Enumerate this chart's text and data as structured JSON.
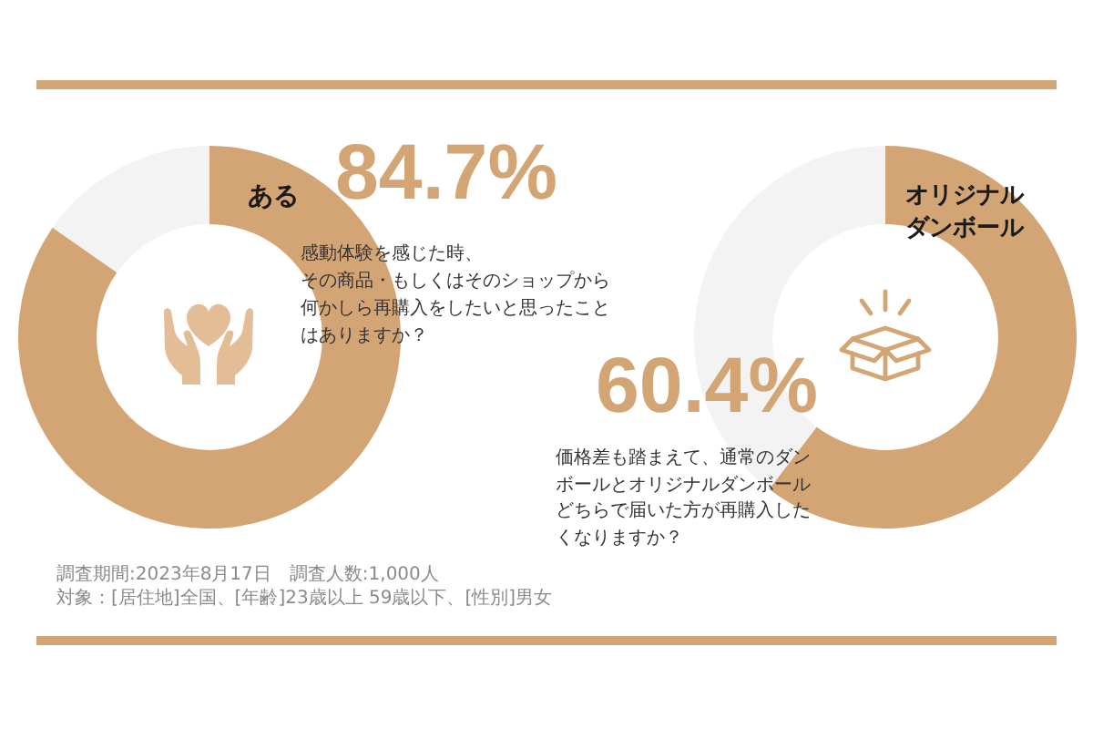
{
  "chart_data": [
    {
      "type": "donut",
      "title": "感動体験を感じた時、その商品・もしくはそのショップから何かしら再購入をしたいと思ったことはありますか？",
      "categories": [
        "ある",
        null
      ],
      "values": [
        84.7,
        15.3
      ],
      "colors": [
        "#d4a574",
        "#f3f3f3"
      ],
      "value_labels": [
        "84.7%",
        null
      ],
      "annotations": [
        "調査期間:2023年8月17日　調査人数:1,000人",
        "対象：[居住地]全国、[年齢]23歳以上 59歳以下、[性別]男女"
      ]
    },
    {
      "type": "donut",
      "title": "価格差も踏まえて、通常のダンボールとオリジナルダンボールどちらで届いた方が再購入したくなりますか？",
      "categories": [
        "オリジナルダンボール",
        null
      ],
      "values": [
        60.4,
        39.6
      ],
      "colors": [
        "#d4a574",
        "#f3f3f3"
      ],
      "value_labels": [
        "60.4%",
        null
      ]
    }
  ]
}
